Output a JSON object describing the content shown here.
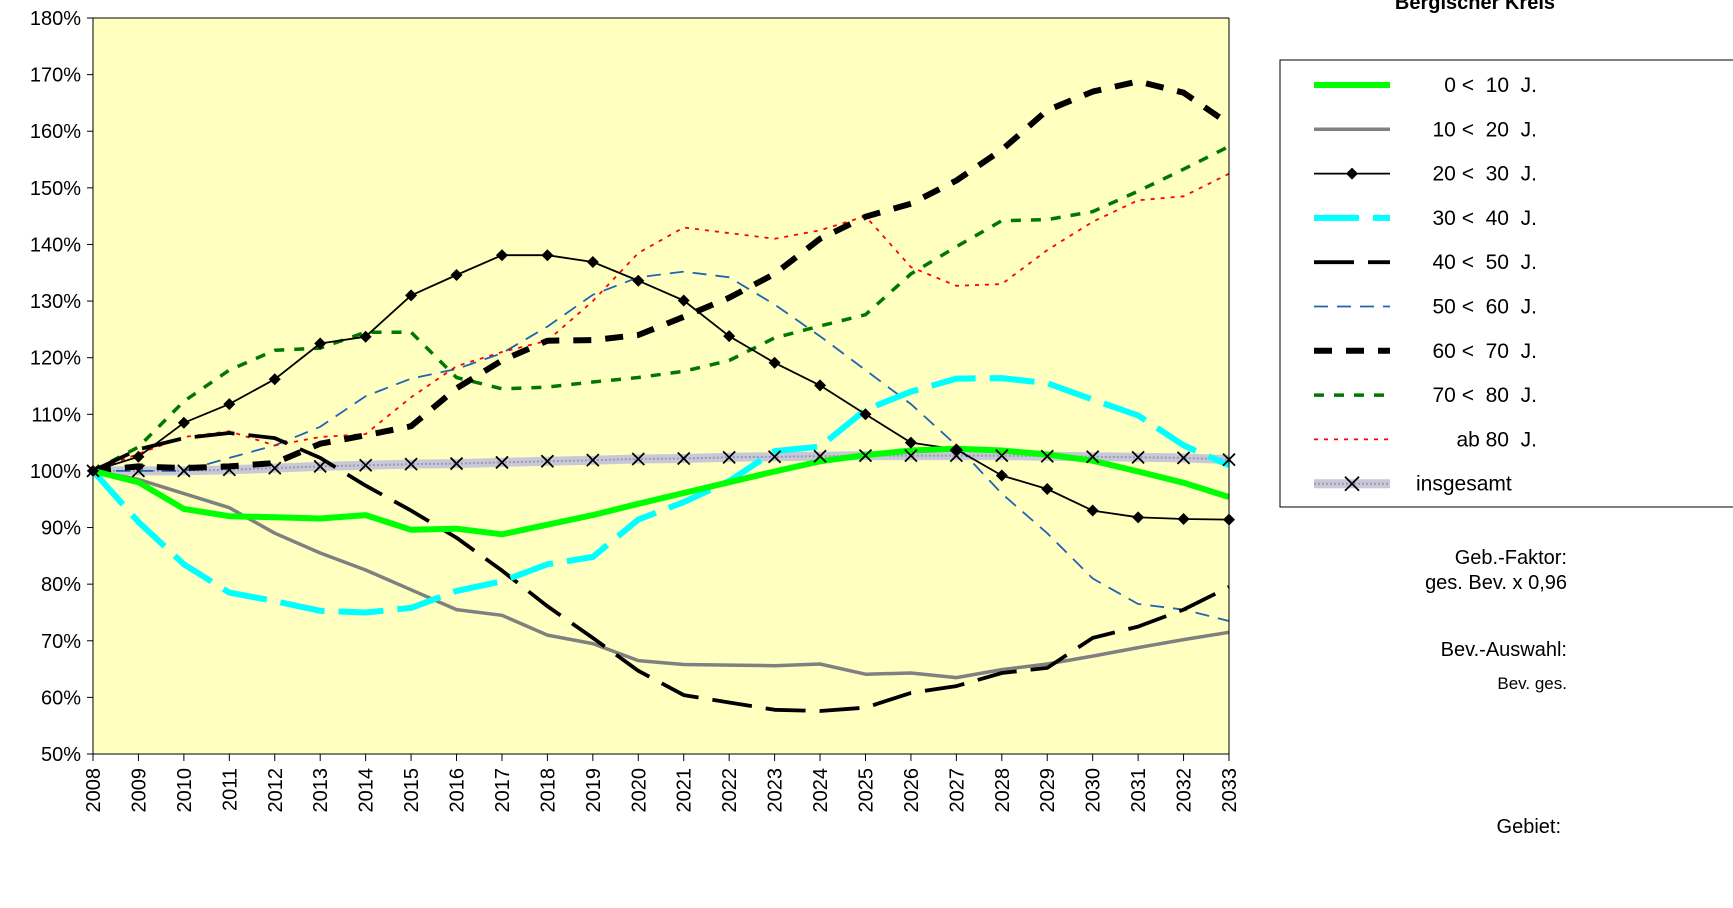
{
  "chart_data": {
    "type": "line",
    "title": "Bergischer Kreis",
    "ylim": [
      50,
      180
    ],
    "y_ticks": [
      "50%",
      "60%",
      "70%",
      "80%",
      "90%",
      "100%",
      "110%",
      "120%",
      "130%",
      "140%",
      "150%",
      "160%",
      "170%",
      "180%"
    ],
    "y_tick_values": [
      50,
      60,
      70,
      80,
      90,
      100,
      110,
      120,
      130,
      140,
      150,
      160,
      170,
      180
    ],
    "x": [
      "2008",
      "2009",
      "2010",
      "2011",
      "2012",
      "2013",
      "2014",
      "2015",
      "2016",
      "2017",
      "2018",
      "2019",
      "2020",
      "2021",
      "2022",
      "2023",
      "2024",
      "2025",
      "2026",
      "2027",
      "2028",
      "2029",
      "2030",
      "2031",
      "2032",
      "2033"
    ],
    "plot_background": "#ffffc0",
    "grid": false,
    "legend_position": "right",
    "series": [
      {
        "name": "0 <  10  J.",
        "color": "#00ff00",
        "style": "thick-solid",
        "values": [
          100,
          98,
          93.3,
          92,
          91.8,
          91.6,
          92.2,
          89.6,
          89.8,
          88.8,
          90.5,
          92.2,
          94.2,
          96.1,
          98,
          99.9,
          101.7,
          102.8,
          103.6,
          103.9,
          103.6,
          102.9,
          101.8,
          99.9,
          97.9,
          95.4
        ]
      },
      {
        "name": "10 <  20  J.",
        "color": "#808080",
        "style": "solid",
        "values": [
          100,
          98.5,
          96,
          93.5,
          89,
          85.5,
          82.5,
          79,
          75.5,
          74.5,
          71,
          69.5,
          66.5,
          65.8,
          65.7,
          65.6,
          65.9,
          64.1,
          64.3,
          63.5,
          64.9,
          65.9,
          67.3,
          68.8,
          70.2,
          71.5
        ]
      },
      {
        "name": "20 <  30  J.",
        "color": "#000000",
        "style": "solid-diamond",
        "values": [
          100,
          102.5,
          108.5,
          111.8,
          116.2,
          122.5,
          123.7,
          131,
          134.6,
          138.1,
          138.1,
          136.9,
          133.6,
          130.1,
          123.8,
          119.1,
          115.1,
          110,
          105,
          103.8,
          99.2,
          96.8,
          93,
          91.8,
          91.5,
          91.4
        ]
      },
      {
        "name": "30 <  40  J.",
        "color": "#00ffff",
        "style": "thick-dash",
        "values": [
          100,
          91,
          83.5,
          78.5,
          77,
          75.3,
          75,
          75.8,
          78.8,
          80.5,
          83.5,
          84.8,
          91.4,
          94.5,
          98.2,
          103.5,
          104.3,
          110.8,
          114,
          116.3,
          116.4,
          115.5,
          112.6,
          109.8,
          104.5,
          101
        ]
      },
      {
        "name": "40 <  50  J.",
        "color": "#000000",
        "style": "long-dash",
        "values": [
          100,
          103.8,
          105.8,
          106.7,
          105.8,
          102.3,
          97.4,
          93,
          88.2,
          82.4,
          76.1,
          70.5,
          64.7,
          60.4,
          59.1,
          57.8,
          57.6,
          58.2,
          60.8,
          62,
          64.3,
          65.2,
          70.5,
          72.5,
          75.5,
          79.5
        ]
      },
      {
        "name": "50 <  60  J.",
        "color": "#1e64b4",
        "style": "thin-dash",
        "values": [
          100,
          100,
          100,
          102.3,
          104.5,
          107.8,
          113.2,
          116.3,
          118,
          120.8,
          125.5,
          131.1,
          134.2,
          135.2,
          134.2,
          129.4,
          123.8,
          117.8,
          111.8,
          104.5,
          96,
          89,
          81,
          76.5,
          75.5,
          73.5
        ]
      },
      {
        "name": "60 <  70  J.",
        "color": "#000000",
        "style": "thick-short-dash",
        "values": [
          100,
          100.8,
          100.5,
          100.8,
          101.4,
          104.8,
          106.3,
          107.9,
          114.6,
          119.5,
          123,
          123.1,
          124,
          127.2,
          130.6,
          134.8,
          141,
          144.9,
          147.2,
          151.3,
          156.7,
          163.7,
          167,
          168.8,
          166.8,
          161.3
        ]
      },
      {
        "name": "70 <  80  J.",
        "color": "#007800",
        "style": "short-dash",
        "values": [
          100,
          104.2,
          112.3,
          117.8,
          121.3,
          121.7,
          124.5,
          124.5,
          116.5,
          114.5,
          114.8,
          115.7,
          116.5,
          117.6,
          119.5,
          123.5,
          125.6,
          127.6,
          134.8,
          139.6,
          144.2,
          144.4,
          145.8,
          149.4,
          153.3,
          157.3
        ]
      },
      {
        "name": "ab 80  J.",
        "color": "#ff0000",
        "style": "dot",
        "values": [
          100,
          103,
          106,
          107,
          104.5,
          106,
          106.5,
          113,
          118.5,
          121,
          123,
          130,
          138.5,
          143,
          142,
          141,
          142.5,
          145,
          136,
          132.7,
          133,
          139,
          144,
          147.8,
          148.5,
          152.5
        ]
      },
      {
        "name": "insgesamt",
        "color": "#000000",
        "style": "gray-x",
        "values": [
          100,
          100,
          100,
          100.2,
          100.5,
          100.8,
          101,
          101.2,
          101.3,
          101.5,
          101.7,
          101.9,
          102.1,
          102.2,
          102.4,
          102.5,
          102.6,
          102.7,
          102.7,
          102.7,
          102.7,
          102.6,
          102.5,
          102.4,
          102.3,
          102
        ]
      }
    ]
  },
  "side": {
    "factor_label": "Geb.-Faktor:",
    "factor_value": "ges. Bev.  x 0,96",
    "selection_label": "Bev.-Auswahl:",
    "selection_value": "Bev. ges.",
    "area_label": "Gebiet:"
  }
}
